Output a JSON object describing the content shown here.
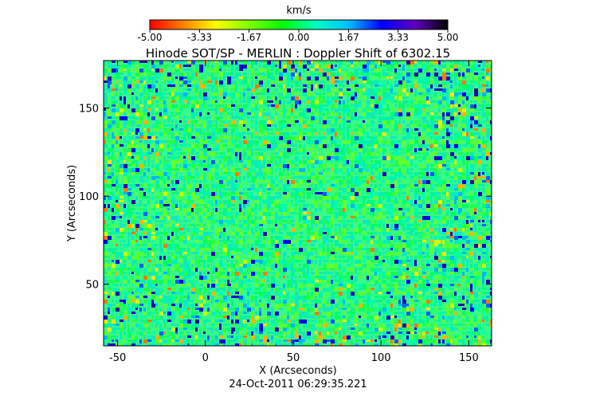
{
  "chart_data": {
    "type": "heatmap",
    "title": "Hinode SOT/SP - MERLIN : Doppler Shift of 6302.15",
    "xlabel": "X (Arcseconds)",
    "ylabel": "Y (Arcseconds)",
    "timestamp": "24-Oct-2011 06:29:35.221",
    "xlim": [
      -58,
      163
    ],
    "ylim": [
      15,
      177
    ],
    "x_ticks": [
      -50,
      0,
      50,
      100,
      150
    ],
    "y_ticks": [
      50,
      100,
      150
    ],
    "x_tick_labels": [
      "-50",
      "0",
      "50",
      "100",
      "150"
    ],
    "y_tick_labels": [
      "50",
      "100",
      "150"
    ],
    "grid": false,
    "colorbar": {
      "unit": "km/s",
      "range": [
        -5.0,
        5.0
      ],
      "ticks": [
        -5.0,
        -3.33,
        -1.67,
        0.0,
        1.67,
        3.33,
        5.0
      ],
      "tick_labels": [
        "-5.00",
        "-3.33",
        "-1.67",
        "0.00",
        "1.67",
        "3.33",
        "5.00"
      ],
      "placement": "top",
      "colors": [
        "#ff0000",
        "#ff8000",
        "#ffff00",
        "#80ff00",
        "#00ff00",
        "#00ffc0",
        "#00c0ff",
        "#0000ff",
        "#6000c0",
        "#000000"
      ]
    },
    "field_description_value": "Doppler velocity field, mostly near 0.00 km/s (green), with scattered blue (+) and yellow/orange (-) pixels concentrated near the edges"
  }
}
